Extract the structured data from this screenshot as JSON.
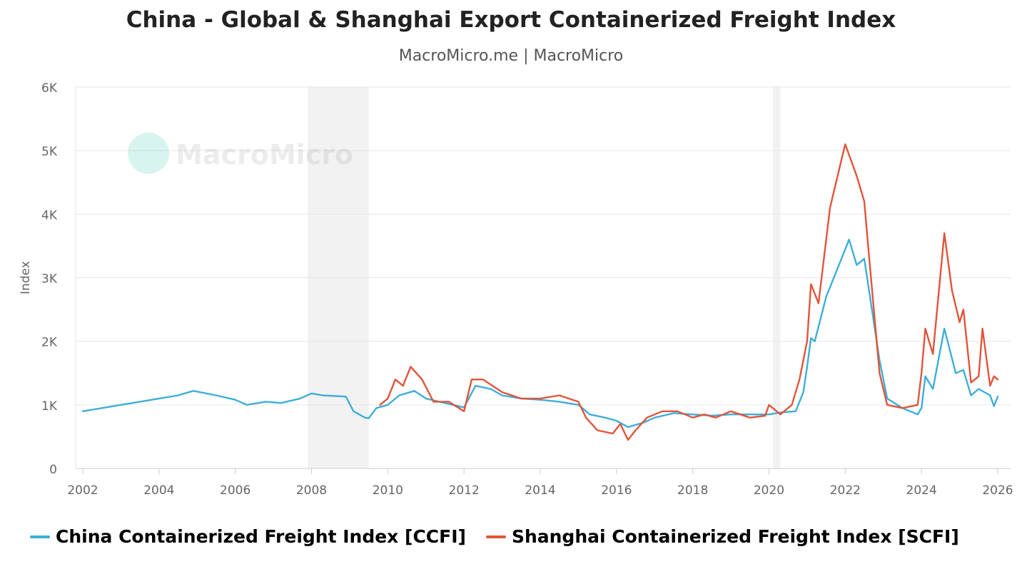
{
  "header": {
    "title": "China - Global & Shanghai Export Containerized Freight Index",
    "subtitle": "MacroMicro.me | MacroMicro"
  },
  "watermark": {
    "text": "MacroMicro"
  },
  "chart_data": {
    "type": "line",
    "title": "China - Global & Shanghai Export Containerized Freight Index",
    "subtitle": "MacroMicro.me | MacroMicro",
    "xlabel": "",
    "ylabel": "Index",
    "xlim": [
      2002,
      2026
    ],
    "ylim": [
      0,
      6000
    ],
    "x_ticks": [
      "2002",
      "2004",
      "2006",
      "2008",
      "2010",
      "2012",
      "2014",
      "2016",
      "2018",
      "2020",
      "2022",
      "2024",
      "2026"
    ],
    "y_ticks": [
      "0",
      "1K",
      "2K",
      "3K",
      "4K",
      "5K",
      "6K"
    ],
    "y_tick_values": [
      0,
      1000,
      2000,
      3000,
      4000,
      5000,
      6000
    ],
    "grid": true,
    "legend_position": "bottom",
    "shaded_ranges": [
      [
        2007.9,
        2009.5
      ],
      [
        2020.1,
        2020.3
      ]
    ],
    "series": [
      {
        "name": "China Containerized Freight Index [CCFI]",
        "color": "#3eaed8",
        "points": [
          [
            2002.0,
            900
          ],
          [
            2002.5,
            950
          ],
          [
            2003.0,
            1000
          ],
          [
            2003.5,
            1050
          ],
          [
            2004.0,
            1100
          ],
          [
            2004.5,
            1150
          ],
          [
            2004.9,
            1220
          ],
          [
            2005.5,
            1150
          ],
          [
            2006.0,
            1080
          ],
          [
            2006.3,
            1000
          ],
          [
            2006.8,
            1050
          ],
          [
            2007.2,
            1030
          ],
          [
            2007.7,
            1100
          ],
          [
            2008.0,
            1180
          ],
          [
            2008.3,
            1150
          ],
          [
            2008.9,
            1130
          ],
          [
            2009.1,
            900
          ],
          [
            2009.4,
            800
          ],
          [
            2009.5,
            790
          ],
          [
            2009.7,
            950
          ],
          [
            2010.0,
            1000
          ],
          [
            2010.3,
            1150
          ],
          [
            2010.7,
            1220
          ],
          [
            2011.0,
            1100
          ],
          [
            2011.5,
            1030
          ],
          [
            2012.0,
            960
          ],
          [
            2012.3,
            1300
          ],
          [
            2012.7,
            1250
          ],
          [
            2013.0,
            1150
          ],
          [
            2013.5,
            1100
          ],
          [
            2014.0,
            1080
          ],
          [
            2014.5,
            1050
          ],
          [
            2015.0,
            1000
          ],
          [
            2015.3,
            850
          ],
          [
            2015.7,
            800
          ],
          [
            2016.0,
            750
          ],
          [
            2016.3,
            650
          ],
          [
            2016.7,
            720
          ],
          [
            2017.0,
            800
          ],
          [
            2017.5,
            870
          ],
          [
            2018.0,
            850
          ],
          [
            2018.5,
            830
          ],
          [
            2019.0,
            850
          ],
          [
            2019.5,
            850
          ],
          [
            2020.0,
            850
          ],
          [
            2020.3,
            880
          ],
          [
            2020.7,
            900
          ],
          [
            2020.9,
            1200
          ],
          [
            2021.0,
            1600
          ],
          [
            2021.1,
            2050
          ],
          [
            2021.2,
            2000
          ],
          [
            2021.5,
            2700
          ],
          [
            2021.9,
            3300
          ],
          [
            2022.1,
            3600
          ],
          [
            2022.3,
            3200
          ],
          [
            2022.5,
            3300
          ],
          [
            2022.7,
            2500
          ],
          [
            2022.9,
            1700
          ],
          [
            2023.1,
            1100
          ],
          [
            2023.5,
            950
          ],
          [
            2023.9,
            850
          ],
          [
            2024.0,
            950
          ],
          [
            2024.1,
            1450
          ],
          [
            2024.3,
            1250
          ],
          [
            2024.6,
            2200
          ],
          [
            2024.9,
            1500
          ],
          [
            2025.1,
            1550
          ],
          [
            2025.3,
            1150
          ],
          [
            2025.5,
            1250
          ],
          [
            2025.8,
            1150
          ],
          [
            2025.9,
            980
          ],
          [
            2026.0,
            1130
          ]
        ]
      },
      {
        "name": "Shanghai Containerized Freight Index [SCFI]",
        "color": "#e0553b",
        "points": [
          [
            2009.8,
            1000
          ],
          [
            2010.0,
            1100
          ],
          [
            2010.2,
            1400
          ],
          [
            2010.4,
            1300
          ],
          [
            2010.6,
            1600
          ],
          [
            2010.9,
            1400
          ],
          [
            2011.2,
            1050
          ],
          [
            2011.6,
            1050
          ],
          [
            2012.0,
            900
          ],
          [
            2012.2,
            1400
          ],
          [
            2012.5,
            1400
          ],
          [
            2013.0,
            1200
          ],
          [
            2013.5,
            1100
          ],
          [
            2014.0,
            1100
          ],
          [
            2014.5,
            1150
          ],
          [
            2015.0,
            1050
          ],
          [
            2015.2,
            800
          ],
          [
            2015.5,
            600
          ],
          [
            2015.9,
            550
          ],
          [
            2016.1,
            700
          ],
          [
            2016.3,
            450
          ],
          [
            2016.5,
            600
          ],
          [
            2016.8,
            800
          ],
          [
            2017.2,
            900
          ],
          [
            2017.6,
            900
          ],
          [
            2018.0,
            800
          ],
          [
            2018.3,
            850
          ],
          [
            2018.6,
            800
          ],
          [
            2019.0,
            900
          ],
          [
            2019.5,
            800
          ],
          [
            2019.9,
            830
          ],
          [
            2020.0,
            1000
          ],
          [
            2020.3,
            850
          ],
          [
            2020.6,
            1000
          ],
          [
            2020.8,
            1400
          ],
          [
            2021.0,
            2000
          ],
          [
            2021.1,
            2900
          ],
          [
            2021.3,
            2600
          ],
          [
            2021.6,
            4100
          ],
          [
            2021.8,
            4600
          ],
          [
            2022.0,
            5100
          ],
          [
            2022.3,
            4600
          ],
          [
            2022.5,
            4200
          ],
          [
            2022.6,
            3500
          ],
          [
            2022.9,
            1500
          ],
          [
            2023.1,
            1000
          ],
          [
            2023.5,
            950
          ],
          [
            2023.9,
            1000
          ],
          [
            2024.0,
            1500
          ],
          [
            2024.1,
            2200
          ],
          [
            2024.3,
            1800
          ],
          [
            2024.6,
            3700
          ],
          [
            2024.8,
            2800
          ],
          [
            2025.0,
            2300
          ],
          [
            2025.1,
            2500
          ],
          [
            2025.3,
            1350
          ],
          [
            2025.5,
            1450
          ],
          [
            2025.6,
            2200
          ],
          [
            2025.8,
            1300
          ],
          [
            2025.9,
            1450
          ],
          [
            2026.0,
            1400
          ]
        ]
      }
    ]
  }
}
